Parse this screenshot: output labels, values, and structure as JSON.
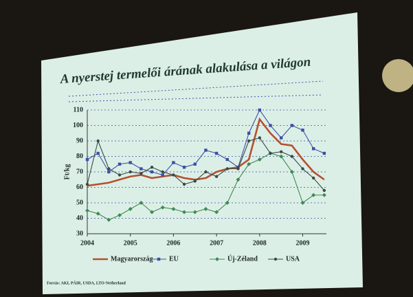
{
  "chart_data": {
    "type": "line",
    "title": "A nyerstej termelői árának alakulása a világon",
    "y_label": "Ft/kg",
    "source": "Forrás: AKI, PÁIR, USDA, LTO-Netherland",
    "x": [
      2004,
      2004.25,
      2004.5,
      2004.75,
      2005,
      2005.25,
      2005.5,
      2005.75,
      2006,
      2006.25,
      2006.5,
      2006.75,
      2007,
      2007.25,
      2007.5,
      2007.75,
      2008,
      2008.25,
      2008.5,
      2008.75,
      2009,
      2009.25,
      2009.5
    ],
    "series": [
      {
        "name": "Magyarország",
        "color": "#b5502e",
        "marker": "none",
        "values": [
          61,
          62,
          63,
          65,
          67,
          68,
          66,
          67,
          68,
          66,
          65,
          66,
          70,
          72,
          73,
          78,
          104,
          95,
          88,
          87,
          78,
          70,
          65
        ]
      },
      {
        "name": "EU",
        "color": "#3b4fa8",
        "marker": "square",
        "values": [
          78,
          82,
          70,
          75,
          76,
          72,
          70,
          68,
          76,
          73,
          75,
          84,
          82,
          78,
          73,
          95,
          110,
          100,
          92,
          100,
          97,
          85,
          82
        ]
      },
      {
        "name": "Új-Zéland",
        "color": "#3f8a55",
        "marker": "diamond",
        "values": [
          45,
          43,
          39,
          42,
          46,
          50,
          44,
          47,
          46,
          44,
          44,
          46,
          44,
          50,
          65,
          75,
          78,
          82,
          80,
          70,
          50,
          55,
          55
        ]
      },
      {
        "name": "USA",
        "color": "#3a4a44",
        "marker": "circle",
        "values": [
          62,
          90,
          72,
          68,
          70,
          69,
          73,
          70,
          68,
          62,
          64,
          70,
          67,
          72,
          72,
          90,
          92,
          82,
          83,
          80,
          72,
          66,
          58
        ]
      }
    ],
    "xlim": [
      2004,
      2009.55
    ],
    "xticks": [
      2004,
      2005,
      2006,
      2007,
      2008,
      2009
    ],
    "ylim": [
      30,
      110
    ],
    "yticks": [
      30,
      40,
      50,
      60,
      70,
      80,
      90,
      100,
      110
    ],
    "grid": true
  }
}
